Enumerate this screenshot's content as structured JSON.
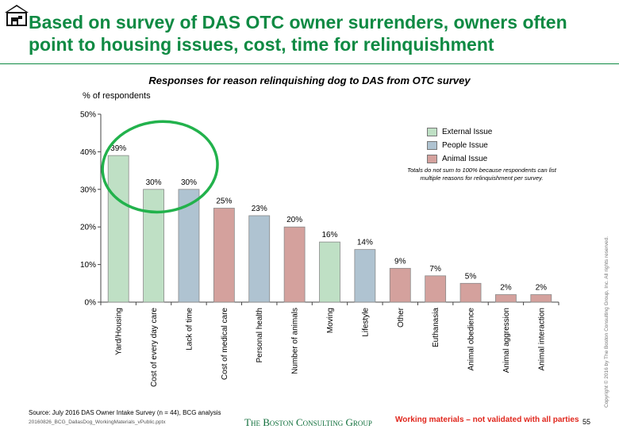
{
  "header": {
    "title": "Based on survey of DAS OTC owner surrenders, owners often point to housing issues, cost, time for relinquishment",
    "logo_icon": "house-dog-icon"
  },
  "colors": {
    "title": "#0f8a43",
    "external": "#bfe0c5",
    "people": "#afc3d1",
    "animal": "#d4a19d",
    "highlight_circle": "#22b24c",
    "working_note": "#e0261c"
  },
  "chart_data": {
    "type": "bar",
    "title": "Responses for reason relinquishing dog to DAS from OTC survey",
    "ylabel": "% of respondents",
    "ylim": [
      0,
      50
    ],
    "yticks": [
      "0%",
      "10%",
      "20%",
      "30%",
      "40%",
      "50%"
    ],
    "grid": false,
    "categories": [
      "Yard/Housing",
      "Cost of every day care",
      "Lack of time",
      "Cost of medical care",
      "Personal health",
      "Number of animals",
      "Moving",
      "Lifestyle",
      "Other",
      "Euthanasia",
      "Animal obedience",
      "Animal aggression",
      "Animal interaction"
    ],
    "values": [
      39,
      30,
      30,
      25,
      23,
      20,
      16,
      14,
      9,
      7,
      5,
      2,
      2
    ],
    "value_labels": [
      "39%",
      "30%",
      "30%",
      "25%",
      "23%",
      "20%",
      "16%",
      "14%",
      "9%",
      "7%",
      "5%",
      "2%",
      "2%"
    ],
    "issue_type": [
      "external",
      "external",
      "people",
      "animal",
      "people",
      "animal",
      "external",
      "people",
      "animal",
      "animal",
      "animal",
      "animal",
      "animal"
    ],
    "legend": [
      {
        "key": "external",
        "label": "External Issue"
      },
      {
        "key": "people",
        "label": "People Issue"
      },
      {
        "key": "animal",
        "label": "Animal Issue"
      }
    ],
    "legend_position": "top-right",
    "note": "Totals do not sum to 100% because respondents can list multiple reasons for relinquishment per survey.",
    "highlighted_categories": [
      "Yard/Housing",
      "Cost of every day care",
      "Lack of time"
    ]
  },
  "footer": {
    "source": "Source: July 2016 DAS Owner Intake Survey (n = 44), BCG analysis",
    "file": "20160826_BCG_DallasDog_WorkingMaterials_vPublic.pptx",
    "brand": "The Boston Consulting Group",
    "working_note": "Working materials – not validated with all parties",
    "page": "55",
    "copyright": "Copyright © 2016 by The Boston Consulting Group, Inc. All rights reserved."
  }
}
